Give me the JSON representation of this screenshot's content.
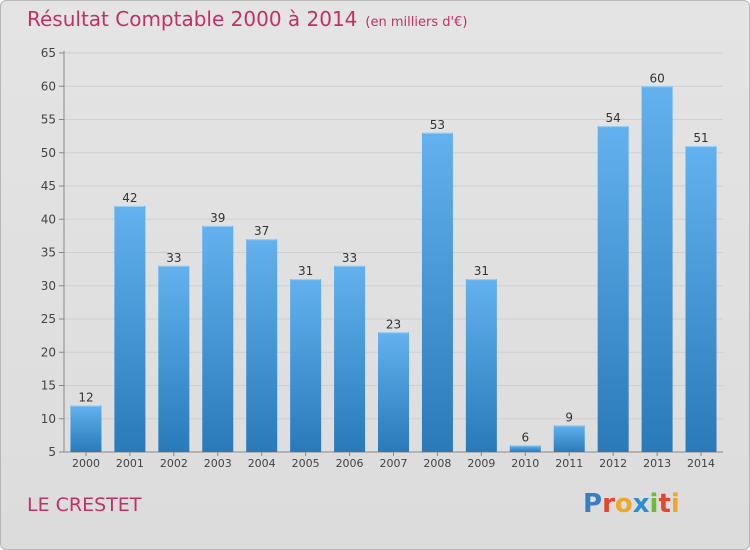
{
  "title": "Résultat Comptable 2000 à 2014",
  "subtitle": "(en milliers d'€)",
  "commune": "LE CRESTET",
  "logo": {
    "text": "Proxiti",
    "letter_colors": [
      "#3a7ec2",
      "#e2472d",
      "#f0a62b",
      "#2f8ccf",
      "#6dbb3a",
      "#e2472d",
      "#f0a62b"
    ]
  },
  "colors": {
    "title": "#c0306a",
    "bar_light": "#63b1ef",
    "bar_dark": "#2a7ab9",
    "grid": "#cfcfcf",
    "axis_text": "#444444"
  },
  "chart_data": {
    "type": "bar",
    "title": "Résultat Comptable 2000 à 2014",
    "subtitle": "(en milliers d'€)",
    "xlabel": "",
    "ylabel": "",
    "categories": [
      "2000",
      "2001",
      "2002",
      "2003",
      "2004",
      "2005",
      "2006",
      "2007",
      "2008",
      "2009",
      "2010",
      "2011",
      "2012",
      "2013",
      "2014"
    ],
    "values": [
      12,
      42,
      33,
      39,
      37,
      31,
      33,
      23,
      53,
      31,
      6,
      9,
      54,
      60,
      51
    ],
    "ylim": [
      5,
      65
    ],
    "yticks": [
      5,
      10,
      15,
      20,
      25,
      30,
      35,
      40,
      45,
      50,
      55,
      60,
      65
    ],
    "grid": true,
    "legend": "none"
  }
}
